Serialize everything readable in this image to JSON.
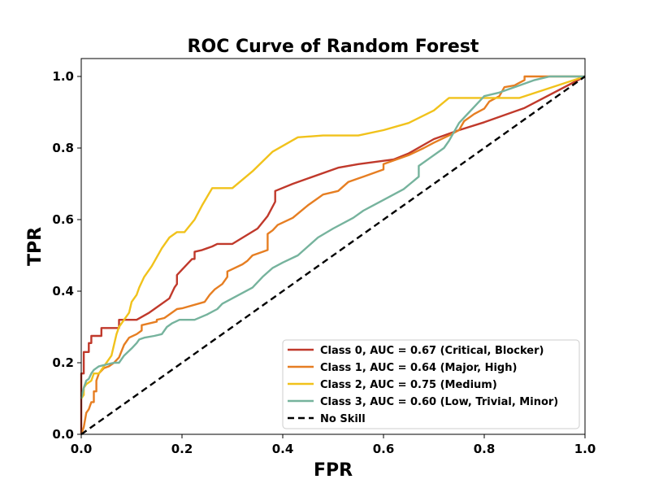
{
  "chart_data": {
    "type": "line",
    "title": "ROC Curve of Random Forest",
    "xlabel": "FPR",
    "ylabel": "TPR",
    "xlim": [
      0,
      1
    ],
    "ylim": [
      0,
      1.05
    ],
    "xticks": [
      "0.0",
      "0.2",
      "0.4",
      "0.6",
      "0.8",
      "1.0"
    ],
    "yticks": [
      "0.0",
      "0.2",
      "0.4",
      "0.6",
      "0.8",
      "1.0"
    ],
    "legend_position": "lower-right",
    "series": [
      {
        "name": "Class 0, AUC = 0.67 (Critical, Blocker)",
        "color": "#c0392b",
        "dash": "solid",
        "points": [
          [
            0,
            0
          ],
          [
            0,
            0.17
          ],
          [
            0.005,
            0.17
          ],
          [
            0.005,
            0.23
          ],
          [
            0.015,
            0.23
          ],
          [
            0.015,
            0.255
          ],
          [
            0.02,
            0.255
          ],
          [
            0.02,
            0.275
          ],
          [
            0.04,
            0.275
          ],
          [
            0.04,
            0.297
          ],
          [
            0.075,
            0.297
          ],
          [
            0.075,
            0.32
          ],
          [
            0.11,
            0.32
          ],
          [
            0.135,
            0.34
          ],
          [
            0.145,
            0.35
          ],
          [
            0.175,
            0.38
          ],
          [
            0.185,
            0.41
          ],
          [
            0.19,
            0.42
          ],
          [
            0.19,
            0.445
          ],
          [
            0.2,
            0.46
          ],
          [
            0.22,
            0.49
          ],
          [
            0.225,
            0.49
          ],
          [
            0.225,
            0.51
          ],
          [
            0.24,
            0.515
          ],
          [
            0.26,
            0.525
          ],
          [
            0.27,
            0.532
          ],
          [
            0.3,
            0.532
          ],
          [
            0.35,
            0.575
          ],
          [
            0.37,
            0.61
          ],
          [
            0.385,
            0.65
          ],
          [
            0.385,
            0.68
          ],
          [
            0.42,
            0.7
          ],
          [
            0.45,
            0.715
          ],
          [
            0.51,
            0.745
          ],
          [
            0.55,
            0.755
          ],
          [
            0.62,
            0.768
          ],
          [
            0.65,
            0.785
          ],
          [
            0.7,
            0.825
          ],
          [
            0.75,
            0.85
          ],
          [
            0.8,
            0.872
          ],
          [
            0.88,
            0.912
          ],
          [
            1,
            1
          ]
        ]
      },
      {
        "name": "Class 1, AUC = 0.64 (Major, High)",
        "color": "#e67e22",
        "dash": "solid",
        "points": [
          [
            0,
            0
          ],
          [
            0.005,
            0.02
          ],
          [
            0.01,
            0.06
          ],
          [
            0.015,
            0.07
          ],
          [
            0.02,
            0.09
          ],
          [
            0.025,
            0.09
          ],
          [
            0.025,
            0.12
          ],
          [
            0.03,
            0.12
          ],
          [
            0.03,
            0.15
          ],
          [
            0.035,
            0.17
          ],
          [
            0.045,
            0.185
          ],
          [
            0.055,
            0.19
          ],
          [
            0.065,
            0.2
          ],
          [
            0.075,
            0.215
          ],
          [
            0.085,
            0.25
          ],
          [
            0.095,
            0.27
          ],
          [
            0.11,
            0.28
          ],
          [
            0.12,
            0.29
          ],
          [
            0.12,
            0.305
          ],
          [
            0.15,
            0.315
          ],
          [
            0.15,
            0.32
          ],
          [
            0.165,
            0.325
          ],
          [
            0.175,
            0.335
          ],
          [
            0.19,
            0.35
          ],
          [
            0.2,
            0.352
          ],
          [
            0.245,
            0.37
          ],
          [
            0.255,
            0.39
          ],
          [
            0.265,
            0.405
          ],
          [
            0.28,
            0.42
          ],
          [
            0.29,
            0.44
          ],
          [
            0.29,
            0.455
          ],
          [
            0.32,
            0.475
          ],
          [
            0.33,
            0.485
          ],
          [
            0.34,
            0.5
          ],
          [
            0.36,
            0.51
          ],
          [
            0.37,
            0.515
          ],
          [
            0.37,
            0.56
          ],
          [
            0.38,
            0.57
          ],
          [
            0.39,
            0.585
          ],
          [
            0.42,
            0.605
          ],
          [
            0.45,
            0.64
          ],
          [
            0.46,
            0.65
          ],
          [
            0.47,
            0.66
          ],
          [
            0.48,
            0.67
          ],
          [
            0.51,
            0.68
          ],
          [
            0.53,
            0.705
          ],
          [
            0.55,
            0.715
          ],
          [
            0.56,
            0.72
          ],
          [
            0.6,
            0.74
          ],
          [
            0.6,
            0.755
          ],
          [
            0.65,
            0.78
          ],
          [
            0.68,
            0.8
          ],
          [
            0.7,
            0.815
          ],
          [
            0.73,
            0.835
          ],
          [
            0.75,
            0.85
          ],
          [
            0.76,
            0.875
          ],
          [
            0.78,
            0.895
          ],
          [
            0.8,
            0.91
          ],
          [
            0.81,
            0.93
          ],
          [
            0.83,
            0.945
          ],
          [
            0.84,
            0.97
          ],
          [
            0.86,
            0.975
          ],
          [
            0.88,
            0.99
          ],
          [
            0.88,
            1
          ],
          [
            1,
            1
          ]
        ]
      },
      {
        "name": "Class 2, AUC = 0.75 (Medium)",
        "color": "#f1c21b",
        "dash": "solid",
        "points": [
          [
            0,
            0.1
          ],
          [
            0.005,
            0.11
          ],
          [
            0.005,
            0.13
          ],
          [
            0.01,
            0.14
          ],
          [
            0.02,
            0.15
          ],
          [
            0.025,
            0.17
          ],
          [
            0.035,
            0.17
          ],
          [
            0.04,
            0.18
          ],
          [
            0.05,
            0.2
          ],
          [
            0.06,
            0.22
          ],
          [
            0.065,
            0.25
          ],
          [
            0.07,
            0.28
          ],
          [
            0.075,
            0.3
          ],
          [
            0.085,
            0.32
          ],
          [
            0.09,
            0.33
          ],
          [
            0.095,
            0.34
          ],
          [
            0.1,
            0.37
          ],
          [
            0.11,
            0.39
          ],
          [
            0.115,
            0.41
          ],
          [
            0.125,
            0.44
          ],
          [
            0.14,
            0.47
          ],
          [
            0.16,
            0.52
          ],
          [
            0.175,
            0.55
          ],
          [
            0.19,
            0.565
          ],
          [
            0.205,
            0.565
          ],
          [
            0.225,
            0.6
          ],
          [
            0.24,
            0.64
          ],
          [
            0.26,
            0.688
          ],
          [
            0.3,
            0.688
          ],
          [
            0.34,
            0.735
          ],
          [
            0.38,
            0.79
          ],
          [
            0.43,
            0.83
          ],
          [
            0.48,
            0.835
          ],
          [
            0.55,
            0.835
          ],
          [
            0.6,
            0.85
          ],
          [
            0.65,
            0.87
          ],
          [
            0.7,
            0.905
          ],
          [
            0.73,
            0.94
          ],
          [
            0.87,
            0.94
          ],
          [
            1,
            1
          ]
        ]
      },
      {
        "name": "Class 3, AUC = 0.60 (Low, Trivial, Minor)",
        "color": "#76b39d",
        "dash": "solid",
        "points": [
          [
            0,
            0.1
          ],
          [
            0.005,
            0.13
          ],
          [
            0.01,
            0.15
          ],
          [
            0.015,
            0.155
          ],
          [
            0.02,
            0.17
          ],
          [
            0.025,
            0.18
          ],
          [
            0.035,
            0.19
          ],
          [
            0.05,
            0.195
          ],
          [
            0.065,
            0.2
          ],
          [
            0.075,
            0.2
          ],
          [
            0.085,
            0.22
          ],
          [
            0.1,
            0.24
          ],
          [
            0.11,
            0.255
          ],
          [
            0.115,
            0.265
          ],
          [
            0.125,
            0.27
          ],
          [
            0.145,
            0.275
          ],
          [
            0.16,
            0.28
          ],
          [
            0.17,
            0.3
          ],
          [
            0.18,
            0.31
          ],
          [
            0.195,
            0.32
          ],
          [
            0.21,
            0.32
          ],
          [
            0.225,
            0.32
          ],
          [
            0.25,
            0.335
          ],
          [
            0.27,
            0.35
          ],
          [
            0.28,
            0.365
          ],
          [
            0.3,
            0.38
          ],
          [
            0.32,
            0.395
          ],
          [
            0.34,
            0.41
          ],
          [
            0.36,
            0.44
          ],
          [
            0.38,
            0.465
          ],
          [
            0.4,
            0.48
          ],
          [
            0.43,
            0.5
          ],
          [
            0.45,
            0.525
          ],
          [
            0.47,
            0.55
          ],
          [
            0.5,
            0.575
          ],
          [
            0.54,
            0.605
          ],
          [
            0.56,
            0.625
          ],
          [
            0.6,
            0.655
          ],
          [
            0.62,
            0.67
          ],
          [
            0.64,
            0.685
          ],
          [
            0.67,
            0.72
          ],
          [
            0.67,
            0.75
          ],
          [
            0.69,
            0.77
          ],
          [
            0.72,
            0.8
          ],
          [
            0.73,
            0.82
          ],
          [
            0.75,
            0.87
          ],
          [
            0.77,
            0.9
          ],
          [
            0.79,
            0.93
          ],
          [
            0.8,
            0.945
          ],
          [
            0.83,
            0.955
          ],
          [
            0.87,
            0.975
          ],
          [
            0.9,
            0.99
          ],
          [
            0.93,
            1
          ],
          [
            1,
            1
          ]
        ]
      },
      {
        "name": "No Skill",
        "color": "#000000",
        "dash": "dashed",
        "points": [
          [
            0,
            0
          ],
          [
            1,
            1
          ]
        ]
      }
    ]
  }
}
